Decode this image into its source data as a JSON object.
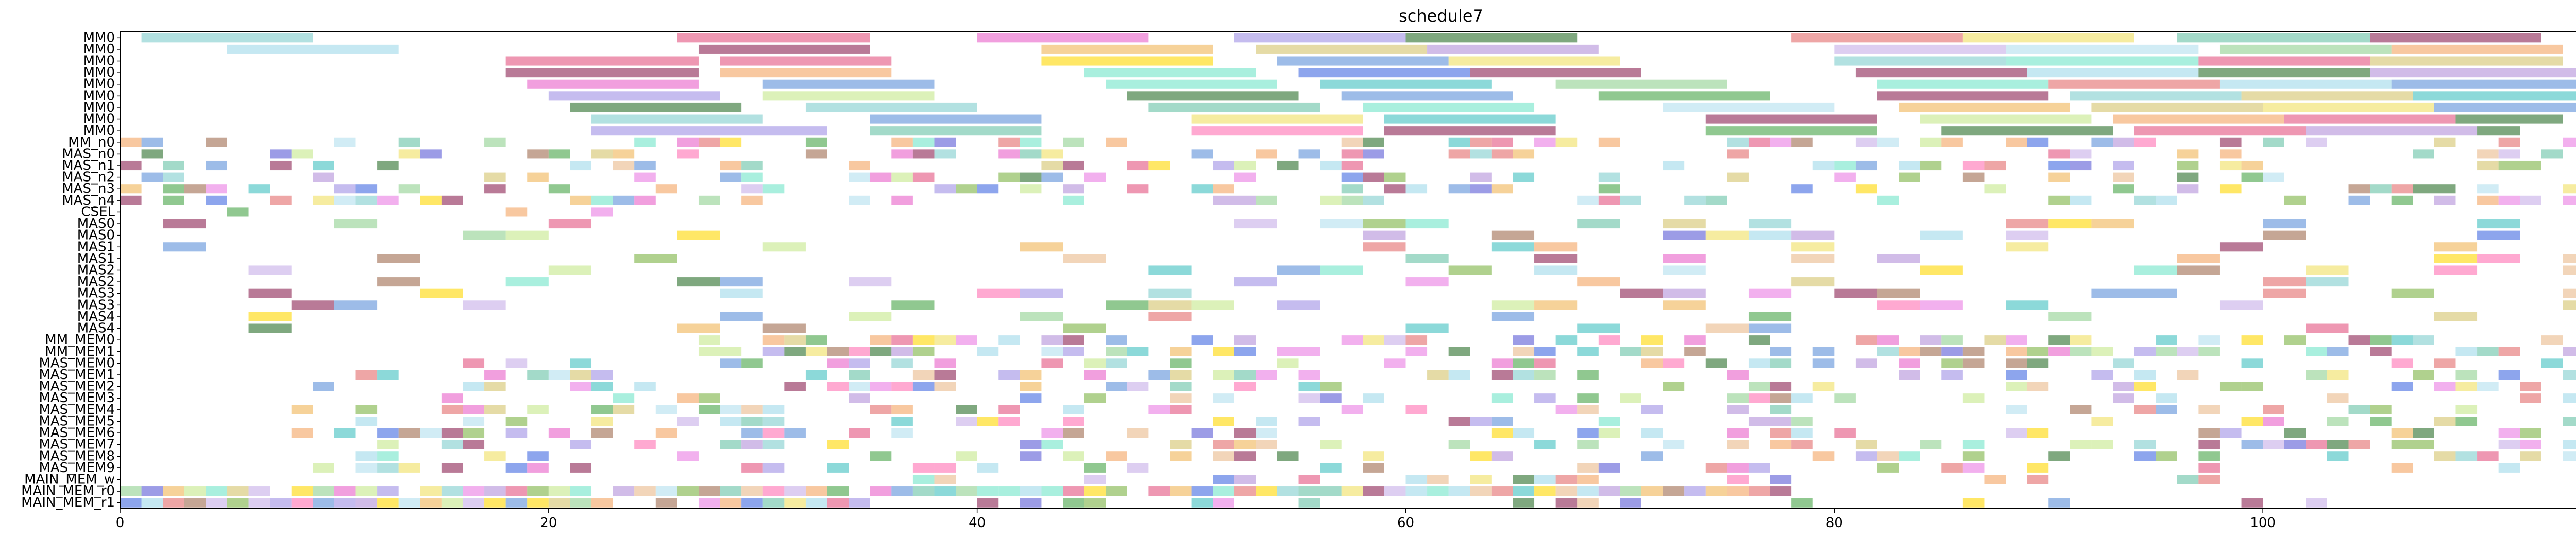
{
  "chart_data": {
    "type": "gantt",
    "title": "schedule7",
    "xlabel": "",
    "ylabel": "",
    "xlim": [
      0,
      117.5
    ],
    "x_ticks": [
      0,
      20,
      40,
      60,
      80,
      100
    ],
    "grid": false,
    "legend": "none",
    "rows": [
      "MM0",
      "MM0",
      "MM0",
      "MM0",
      "MM0",
      "MM0",
      "MM0",
      "MM0",
      "MM0",
      "MM_n0",
      "MAS_n0",
      "MAS_n1",
      "MAS_n2",
      "MAS_n3",
      "MAS_n4",
      "CSEL",
      "MAS0",
      "MAS0",
      "MAS1",
      "MAS1",
      "MAS2",
      "MAS2",
      "MAS3",
      "MAS3",
      "MAS4",
      "MAS4",
      "MM_MEM0",
      "MM_MEM1",
      "MAS_MEM0",
      "MAS_MEM1",
      "MAS_MEM2",
      "MAS_MEM3",
      "MAS_MEM4",
      "MAS_MEM5",
      "MAS_MEM6",
      "MAS_MEM7",
      "MAS_MEM8",
      "MAS_MEM9",
      "MAIN_MEM_w",
      "MAIN_MEM_r0",
      "MAIN_MEM_r1"
    ],
    "palette": [
      "#7fcdcd",
      "#9fd8ea",
      "#e3527e",
      "#8b2252",
      "#e85fc8",
      "#9f8fe5",
      "#5b8fd8",
      "#f0b455",
      "#46a346",
      "#2a6e2a",
      "#6fe5c8",
      "#b2dfee",
      "#e26b6b",
      "#f0e060",
      "#c4e88a",
      "#8fd18f",
      "#b38fd8",
      "#e9b98b",
      "#e97be3",
      "#5a5ad6",
      "#66c2a5",
      "#d4c36b",
      "#9e6b4f",
      "#ff6fb3",
      "#3fbfbf",
      "#7cb342",
      "#c7aee7",
      "#f4a460",
      "#ffd700",
      "#4169e1"
    ],
    "bars": [
      {
        "r": 0,
        "s": 1,
        "e": 9,
        "c": 0
      },
      {
        "r": 0,
        "s": 26,
        "e": 35,
        "c": 2
      },
      {
        "r": 0,
        "s": 40,
        "e": 48,
        "c": 4
      },
      {
        "r": 0,
        "s": 52,
        "e": 60,
        "c": 5
      },
      {
        "r": 0,
        "s": 60,
        "e": 68,
        "c": 9
      },
      {
        "r": 0,
        "s": 78,
        "e": 86,
        "c": 12
      },
      {
        "r": 0,
        "s": 86,
        "e": 94,
        "c": 13
      },
      {
        "r": 0,
        "s": 96,
        "e": 105,
        "c": 20
      },
      {
        "r": 0,
        "s": 105,
        "e": 113,
        "c": 3
      },
      {
        "r": 1,
        "s": 5,
        "e": 13,
        "c": 1
      },
      {
        "r": 1,
        "s": 27,
        "e": 35,
        "c": 3
      },
      {
        "r": 1,
        "s": 43,
        "e": 51,
        "c": 7
      },
      {
        "r": 1,
        "s": 53,
        "e": 61,
        "c": 21
      },
      {
        "r": 1,
        "s": 61,
        "e": 69,
        "c": 16
      },
      {
        "r": 1,
        "s": 80,
        "e": 88,
        "c": 26
      },
      {
        "r": 1,
        "s": 88,
        "e": 97,
        "c": 11
      },
      {
        "r": 1,
        "s": 98,
        "e": 106,
        "c": 15
      },
      {
        "r": 1,
        "s": 106,
        "e": 114,
        "c": 27
      },
      {
        "r": 2,
        "s": 18,
        "e": 27,
        "c": 2
      },
      {
        "r": 2,
        "s": 28,
        "e": 36,
        "c": 2
      },
      {
        "r": 2,
        "s": 43,
        "e": 51,
        "c": 28
      },
      {
        "r": 2,
        "s": 54,
        "e": 62,
        "c": 6
      },
      {
        "r": 2,
        "s": 62,
        "e": 70,
        "c": 13
      },
      {
        "r": 2,
        "s": 80,
        "e": 88,
        "c": 0
      },
      {
        "r": 2,
        "s": 88,
        "e": 97,
        "c": 10
      },
      {
        "r": 2,
        "s": 97,
        "e": 105,
        "c": 2
      },
      {
        "r": 2,
        "s": 105,
        "e": 114,
        "c": 21
      },
      {
        "r": 3,
        "s": 18,
        "e": 27,
        "c": 3
      },
      {
        "r": 3,
        "s": 28,
        "e": 36,
        "c": 27
      },
      {
        "r": 3,
        "s": 45,
        "e": 53,
        "c": 10
      },
      {
        "r": 3,
        "s": 55,
        "e": 63,
        "c": 29
      },
      {
        "r": 3,
        "s": 63,
        "e": 71,
        "c": 3
      },
      {
        "r": 3,
        "s": 81,
        "e": 89,
        "c": 3
      },
      {
        "r": 3,
        "s": 89,
        "e": 97,
        "c": 1
      },
      {
        "r": 3,
        "s": 97,
        "e": 105,
        "c": 9
      },
      {
        "r": 3,
        "s": 105,
        "e": 115,
        "c": 16
      },
      {
        "r": 4,
        "s": 19,
        "e": 27,
        "c": 4
      },
      {
        "r": 4,
        "s": 30,
        "e": 38,
        "c": 6
      },
      {
        "r": 4,
        "s": 46,
        "e": 54,
        "c": 10
      },
      {
        "r": 4,
        "s": 56,
        "e": 64,
        "c": 24
      },
      {
        "r": 4,
        "s": 67,
        "e": 75,
        "c": 15
      },
      {
        "r": 4,
        "s": 82,
        "e": 90,
        "c": 10
      },
      {
        "r": 4,
        "s": 90,
        "e": 98,
        "c": 12
      },
      {
        "r": 4,
        "s": 98,
        "e": 106,
        "c": 1
      },
      {
        "r": 4,
        "s": 106,
        "e": 117,
        "c": 6
      },
      {
        "r": 5,
        "s": 20,
        "e": 28,
        "c": 5
      },
      {
        "r": 5,
        "s": 30,
        "e": 38,
        "c": 14
      },
      {
        "r": 5,
        "s": 47,
        "e": 55,
        "c": 9
      },
      {
        "r": 5,
        "s": 57,
        "e": 65,
        "c": 6
      },
      {
        "r": 5,
        "s": 69,
        "e": 77,
        "c": 8
      },
      {
        "r": 5,
        "s": 82,
        "e": 90,
        "c": 3
      },
      {
        "r": 5,
        "s": 91,
        "e": 99,
        "c": 0
      },
      {
        "r": 5,
        "s": 99,
        "e": 107,
        "c": 21
      },
      {
        "r": 5,
        "s": 107,
        "e": 115,
        "c": 24
      },
      {
        "r": 6,
        "s": 21,
        "e": 29,
        "c": 9
      },
      {
        "r": 6,
        "s": 32,
        "e": 40,
        "c": 0
      },
      {
        "r": 6,
        "s": 48,
        "e": 56,
        "c": 20
      },
      {
        "r": 6,
        "s": 58,
        "e": 66,
        "c": 10
      },
      {
        "r": 6,
        "s": 72,
        "e": 80,
        "c": 11
      },
      {
        "r": 6,
        "s": 83,
        "e": 91,
        "c": 7
      },
      {
        "r": 6,
        "s": 92,
        "e": 100,
        "c": 21
      },
      {
        "r": 6,
        "s": 100,
        "e": 108,
        "c": 13
      },
      {
        "r": 6,
        "s": 108,
        "e": 116,
        "c": 6
      },
      {
        "r": 7,
        "s": 22,
        "e": 30,
        "c": 0
      },
      {
        "r": 7,
        "s": 35,
        "e": 43,
        "c": 6
      },
      {
        "r": 7,
        "s": 50,
        "e": 58,
        "c": 13
      },
      {
        "r": 7,
        "s": 59,
        "e": 67,
        "c": 24
      },
      {
        "r": 7,
        "s": 74,
        "e": 82,
        "c": 3
      },
      {
        "r": 7,
        "s": 84,
        "e": 92,
        "c": 14
      },
      {
        "r": 7,
        "s": 93,
        "e": 101,
        "c": 27
      },
      {
        "r": 7,
        "s": 101,
        "e": 109,
        "c": 2
      },
      {
        "r": 7,
        "s": 109,
        "e": 114,
        "c": 9
      },
      {
        "r": 8,
        "s": 22,
        "e": 33,
        "c": 5
      },
      {
        "r": 8,
        "s": 35,
        "e": 43,
        "c": 20
      },
      {
        "r": 8,
        "s": 50,
        "e": 58,
        "c": 23
      },
      {
        "r": 8,
        "s": 59,
        "e": 67,
        "c": 3
      },
      {
        "r": 8,
        "s": 74,
        "e": 82,
        "c": 8
      },
      {
        "r": 8,
        "s": 85,
        "e": 93,
        "c": 9
      },
      {
        "r": 8,
        "s": 94,
        "e": 102,
        "c": 2
      },
      {
        "r": 8,
        "s": 102,
        "e": 110,
        "c": 16
      },
      {
        "r": 8,
        "s": 110,
        "e": 112,
        "c": 9
      }
    ],
    "scatter_seed": 7
  }
}
